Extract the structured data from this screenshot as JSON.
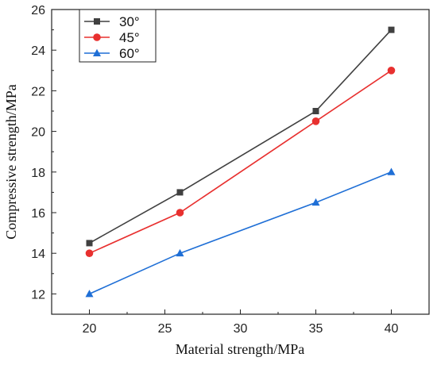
{
  "chart_data": {
    "type": "line",
    "xlabel": "Material strength/MPa",
    "ylabel": "Compressive strength/MPa",
    "xlim": [
      17.5,
      42.5
    ],
    "ylim": [
      11,
      26
    ],
    "xticks": [
      20,
      25,
      30,
      35,
      40
    ],
    "yticks": [
      12,
      14,
      16,
      18,
      20,
      22,
      24,
      26
    ],
    "grid": false,
    "legend_position": "top-left",
    "series": [
      {
        "name": "30°",
        "color": "#404040",
        "marker": "square",
        "x": [
          20,
          26,
          35,
          40
        ],
        "values": [
          14.5,
          17,
          21,
          25
        ]
      },
      {
        "name": "45°",
        "color": "#e8302f",
        "marker": "circle",
        "x": [
          20,
          26,
          35,
          40
        ],
        "values": [
          14,
          16,
          20.5,
          23
        ]
      },
      {
        "name": "60°",
        "color": "#1f6fd6",
        "marker": "triangle",
        "x": [
          20,
          26,
          35,
          40
        ],
        "values": [
          12,
          14,
          16.5,
          18
        ]
      }
    ]
  }
}
